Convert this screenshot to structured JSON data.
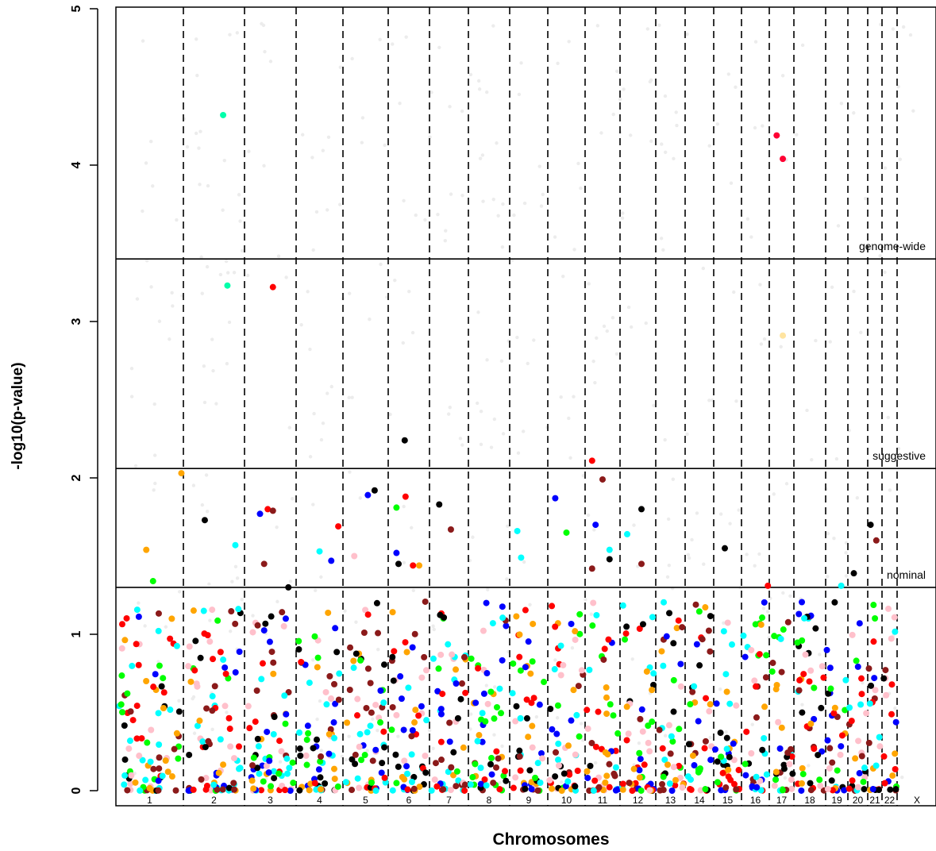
{
  "chart_data": {
    "type": "scatter",
    "title": "",
    "xlabel": "Chromosomes",
    "ylabel": "-log10(p-value)",
    "ylim": [
      -0.13,
      5.03
    ],
    "yticks": [
      0,
      1,
      2,
      3,
      4,
      5
    ],
    "grid": false,
    "legend": "none",
    "chromosomes": [
      "1",
      "2",
      "3",
      "4",
      "5",
      "6",
      "7",
      "8",
      "9",
      "10",
      "11",
      "12",
      "13",
      "14",
      "15",
      "16",
      "17",
      "18",
      "19",
      "20",
      "21",
      "22",
      "X"
    ],
    "palette": [
      "#ff0000",
      "#0000ff",
      "#00ff00",
      "#000000",
      "#ffa500",
      "#00ffff",
      "#8b1a1a",
      "#ffc0cb"
    ],
    "thresholds": [
      {
        "label": "genome-wide",
        "value": 3.4
      },
      {
        "label": "suggestive",
        "value": 2.06
      },
      {
        "label": "nominal",
        "value": 1.3
      }
    ],
    "top_points": [
      {
        "chr": "1",
        "pos": 0.45,
        "y": 1.54,
        "color": "#ffa500"
      },
      {
        "chr": "1",
        "pos": 0.55,
        "y": 1.34,
        "color": "#00ff00"
      },
      {
        "chr": "1",
        "pos": 0.97,
        "y": 2.03,
        "color": "#ffa500"
      },
      {
        "chr": "2",
        "pos": 0.35,
        "y": 1.73,
        "color": "#000000"
      },
      {
        "chr": "2",
        "pos": 0.65,
        "y": 4.32,
        "color": "#00ffaa"
      },
      {
        "chr": "2",
        "pos": 0.72,
        "y": 3.23,
        "color": "#00ffaa"
      },
      {
        "chr": "2",
        "pos": 0.85,
        "y": 1.57,
        "color": "#00ffff"
      },
      {
        "chr": "3",
        "pos": 0.3,
        "y": 1.77,
        "color": "#0000ff"
      },
      {
        "chr": "3",
        "pos": 0.38,
        "y": 1.45,
        "color": "#8b1a1a"
      },
      {
        "chr": "3",
        "pos": 0.45,
        "y": 1.8,
        "color": "#ff0000"
      },
      {
        "chr": "3",
        "pos": 0.55,
        "y": 1.79,
        "color": "#8b1a1a"
      },
      {
        "chr": "3",
        "pos": 0.55,
        "y": 3.22,
        "color": "#ff0000"
      },
      {
        "chr": "3",
        "pos": 0.85,
        "y": 1.3,
        "color": "#000000"
      },
      {
        "chr": "4",
        "pos": 0.5,
        "y": 1.53,
        "color": "#00ffff"
      },
      {
        "chr": "4",
        "pos": 0.75,
        "y": 1.47,
        "color": "#0000ff"
      },
      {
        "chr": "4",
        "pos": 0.9,
        "y": 1.69,
        "color": "#ff0000"
      },
      {
        "chr": "5",
        "pos": 0.25,
        "y": 1.5,
        "color": "#ffc0cb"
      },
      {
        "chr": "5",
        "pos": 0.55,
        "y": 1.89,
        "color": "#0000ff"
      },
      {
        "chr": "5",
        "pos": 0.7,
        "y": 1.92,
        "color": "#000000"
      },
      {
        "chr": "6",
        "pos": 0.2,
        "y": 1.81,
        "color": "#00ff00"
      },
      {
        "chr": "6",
        "pos": 0.2,
        "y": 1.52,
        "color": "#0000ff"
      },
      {
        "chr": "6",
        "pos": 0.25,
        "y": 1.45,
        "color": "#000000"
      },
      {
        "chr": "6",
        "pos": 0.4,
        "y": 2.24,
        "color": "#000000"
      },
      {
        "chr": "6",
        "pos": 0.42,
        "y": 1.88,
        "color": "#ff0000"
      },
      {
        "chr": "6",
        "pos": 0.6,
        "y": 1.44,
        "color": "#ff0000"
      },
      {
        "chr": "6",
        "pos": 0.75,
        "y": 1.44,
        "color": "#ffa500"
      },
      {
        "chr": "7",
        "pos": 0.25,
        "y": 1.83,
        "color": "#000000"
      },
      {
        "chr": "7",
        "pos": 0.55,
        "y": 1.67,
        "color": "#8b1a1a"
      },
      {
        "chr": "9",
        "pos": 0.2,
        "y": 1.66,
        "color": "#00ffff"
      },
      {
        "chr": "9",
        "pos": 0.3,
        "y": 1.49,
        "color": "#00ffff"
      },
      {
        "chr": "10",
        "pos": 0.2,
        "y": 1.87,
        "color": "#0000ff"
      },
      {
        "chr": "10",
        "pos": 0.5,
        "y": 1.65,
        "color": "#00ff00"
      },
      {
        "chr": "11",
        "pos": 0.2,
        "y": 2.11,
        "color": "#ff0000"
      },
      {
        "chr": "11",
        "pos": 0.2,
        "y": 1.42,
        "color": "#8b1a1a"
      },
      {
        "chr": "11",
        "pos": 0.3,
        "y": 1.7,
        "color": "#0000ff"
      },
      {
        "chr": "11",
        "pos": 0.5,
        "y": 1.99,
        "color": "#8b1a1a"
      },
      {
        "chr": "11",
        "pos": 0.7,
        "y": 1.54,
        "color": "#00ffff"
      },
      {
        "chr": "11",
        "pos": 0.7,
        "y": 1.48,
        "color": "#000000"
      },
      {
        "chr": "12",
        "pos": 0.2,
        "y": 1.64,
        "color": "#00ffff"
      },
      {
        "chr": "12",
        "pos": 0.6,
        "y": 1.8,
        "color": "#000000"
      },
      {
        "chr": "12",
        "pos": 0.6,
        "y": 1.45,
        "color": "#8b1a1a"
      },
      {
        "chr": "15",
        "pos": 0.4,
        "y": 1.55,
        "color": "#000000"
      },
      {
        "chr": "16",
        "pos": 0.95,
        "y": 1.31,
        "color": "#ff0000"
      },
      {
        "chr": "17",
        "pos": 0.3,
        "y": 4.19,
        "color": "#ff0033"
      },
      {
        "chr": "17",
        "pos": 0.55,
        "y": 4.04,
        "color": "#ff0033"
      },
      {
        "chr": "17",
        "pos": 0.55,
        "y": 2.91,
        "color": "#ffe4a0"
      },
      {
        "chr": "19",
        "pos": 0.7,
        "y": 1.31,
        "color": "#00ffff"
      },
      {
        "chr": "20",
        "pos": 0.3,
        "y": 1.39,
        "color": "#000000"
      },
      {
        "chr": "21",
        "pos": 0.2,
        "y": 1.7,
        "color": "#000000"
      },
      {
        "chr": "21",
        "pos": 0.6,
        "y": 1.6,
        "color": "#8b1a1a"
      }
    ]
  }
}
